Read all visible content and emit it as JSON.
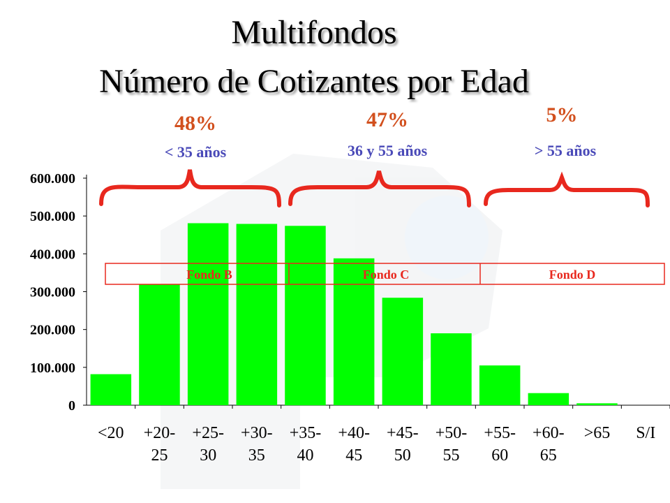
{
  "title": {
    "line1": "Multifondos",
    "line2": "Número de Cotizantes por Edad"
  },
  "groups": [
    {
      "pct": "48%",
      "range": "< 35 años"
    },
    {
      "pct": "47%",
      "range": "36 y 55 años"
    },
    {
      "pct": "5%",
      "range": "> 55 años"
    }
  ],
  "fondos": [
    "Fondo B",
    "Fondo C",
    "Fondo D"
  ],
  "colors": {
    "bar": "#00ff00",
    "accent": "#e8281e",
    "range_text": "#4a4ab8",
    "pct_text": "#d2501e"
  },
  "chart_data": {
    "type": "bar",
    "categories": [
      "<20",
      "+20-25",
      "+25-30",
      "+30-35",
      "+35-40",
      "+40-45",
      "+45-50",
      "+50-55",
      "+55-60",
      "+60-65",
      ">65",
      "S/I"
    ],
    "category_lines": [
      [
        "<20"
      ],
      [
        "+20-",
        "25"
      ],
      [
        "+25-",
        "30"
      ],
      [
        "+30-",
        "35"
      ],
      [
        "+35-",
        "40"
      ],
      [
        "+40-",
        "45"
      ],
      [
        "+45-",
        "50"
      ],
      [
        "+50-",
        "55"
      ],
      [
        "+55-",
        "60"
      ],
      [
        "+60-",
        "65"
      ],
      [
        ">65"
      ],
      [
        "S/I"
      ]
    ],
    "values": [
      82000,
      320000,
      481000,
      479000,
      474000,
      388000,
      284000,
      190000,
      105000,
      32000,
      5000,
      0
    ],
    "yticks": [
      "0",
      "100.000",
      "200.000",
      "300.000",
      "400.000",
      "500.000",
      "600.000"
    ],
    "ylim": [
      0,
      600000
    ],
    "grid": false,
    "legend": "none"
  }
}
